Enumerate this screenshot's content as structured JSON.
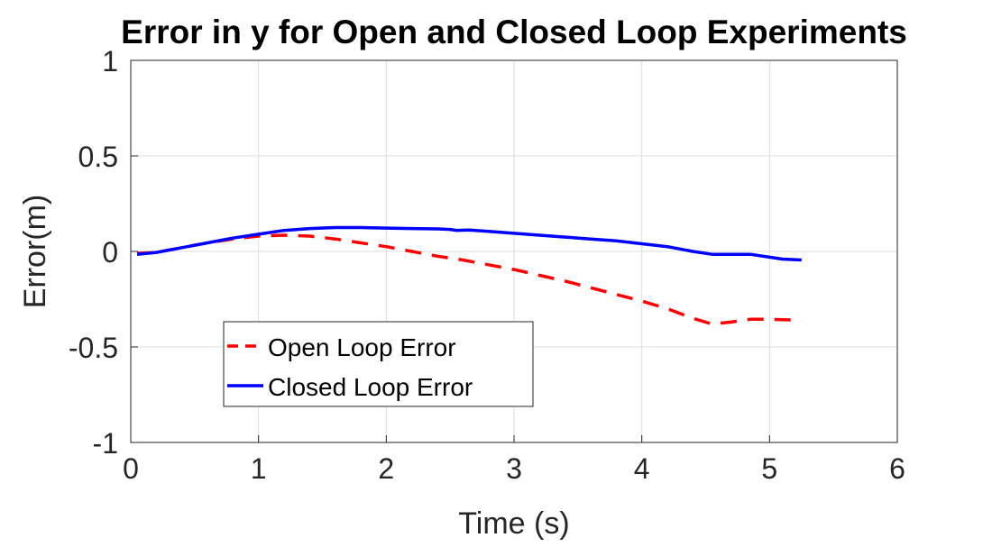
{
  "chart_data": {
    "type": "line",
    "title": "Error in y for Open and Closed Loop Experiments",
    "xlabel": "Time (s)",
    "ylabel": "Error(m)",
    "xlim": [
      0,
      6
    ],
    "ylim": [
      -1,
      1
    ],
    "xticks": [
      0,
      1,
      2,
      3,
      4,
      5,
      6
    ],
    "yticks": [
      1,
      0.5,
      0,
      -0.5,
      -1
    ],
    "xtick_labels": [
      "0",
      "1",
      "2",
      "3",
      "4",
      "5",
      "6"
    ],
    "ytick_labels": [
      "1",
      "0.5",
      "0",
      "-0.5",
      "-1"
    ],
    "grid": true,
    "legend_position": "lower-left",
    "series": [
      {
        "name": "Open Loop Error",
        "color": "#ff0000",
        "line_style": "dashed",
        "x": [
          0.05,
          0.2,
          0.4,
          0.6,
          0.8,
          1.0,
          1.2,
          1.4,
          1.6,
          1.8,
          2.0,
          2.2,
          2.4,
          2.6,
          2.8,
          3.0,
          3.2,
          3.4,
          3.6,
          3.8,
          4.0,
          4.2,
          4.4,
          4.55,
          4.7,
          4.85,
          5.0,
          5.25
        ],
        "values": [
          -0.01,
          -0.005,
          0.02,
          0.045,
          0.065,
          0.08,
          0.085,
          0.08,
          0.065,
          0.045,
          0.025,
          0.0,
          -0.025,
          -0.045,
          -0.07,
          -0.095,
          -0.125,
          -0.155,
          -0.19,
          -0.225,
          -0.26,
          -0.3,
          -0.35,
          -0.38,
          -0.37,
          -0.355,
          -0.355,
          -0.36
        ]
      },
      {
        "name": "Closed Loop Error",
        "color": "#0000ff",
        "line_style": "solid",
        "x": [
          0.05,
          0.2,
          0.4,
          0.6,
          0.8,
          1.0,
          1.2,
          1.4,
          1.6,
          1.8,
          2.0,
          2.2,
          2.4,
          2.5,
          2.55,
          2.65,
          2.8,
          3.0,
          3.2,
          3.4,
          3.6,
          3.8,
          4.0,
          4.2,
          4.4,
          4.55,
          4.7,
          4.85,
          5.0,
          5.1,
          5.25
        ],
        "values": [
          -0.015,
          -0.005,
          0.02,
          0.045,
          0.07,
          0.09,
          0.11,
          0.12,
          0.125,
          0.125,
          0.122,
          0.12,
          0.118,
          0.115,
          0.11,
          0.112,
          0.105,
          0.095,
          0.085,
          0.075,
          0.065,
          0.055,
          0.04,
          0.025,
          0.0,
          -0.015,
          -0.015,
          -0.015,
          -0.03,
          -0.04,
          -0.045
        ]
      }
    ]
  }
}
